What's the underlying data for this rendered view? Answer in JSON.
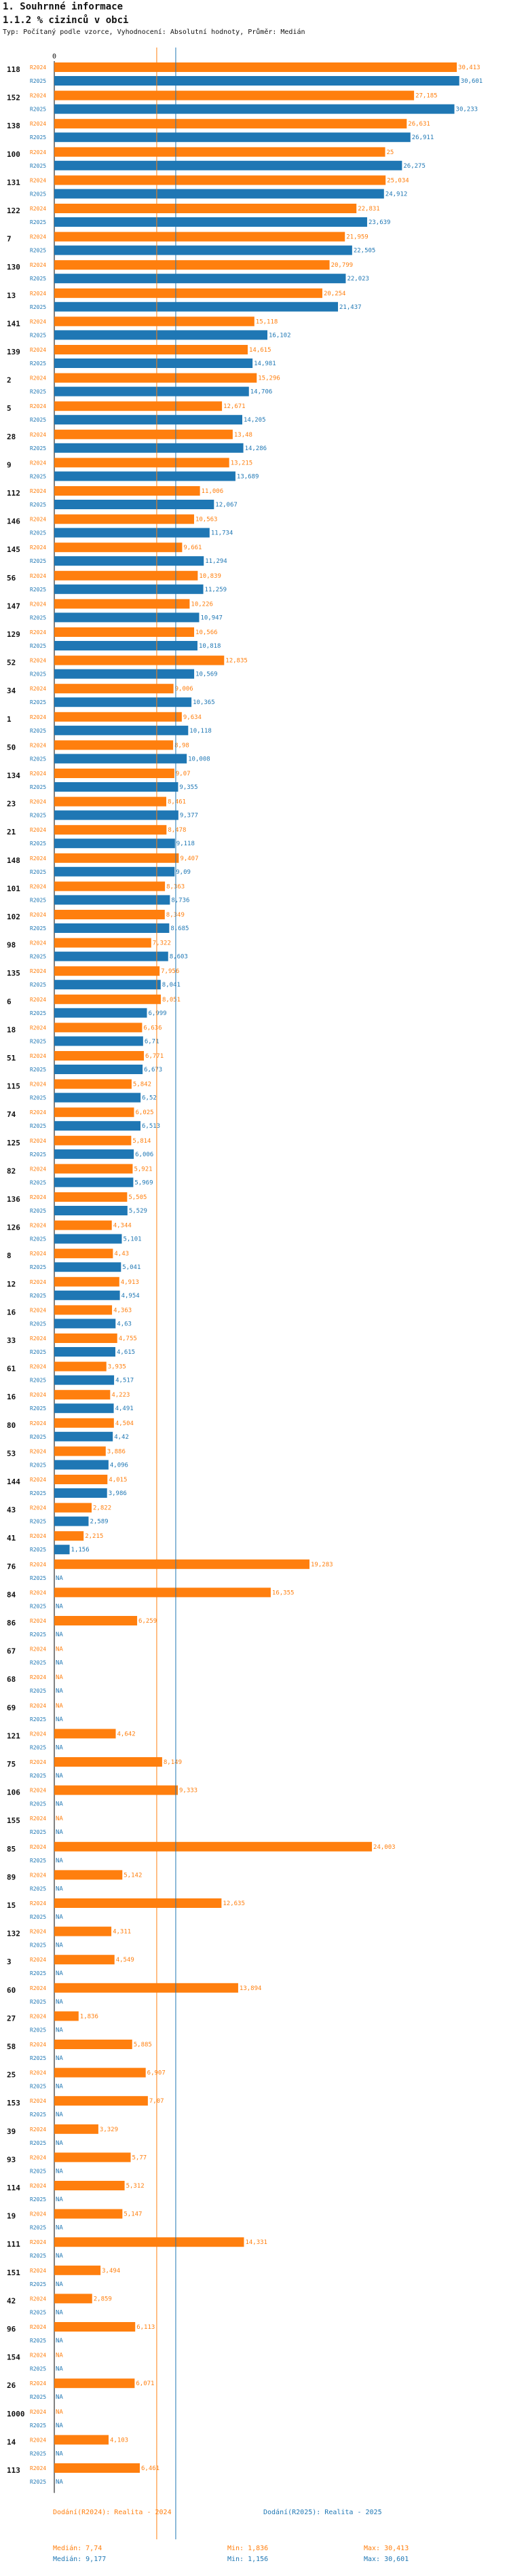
{
  "header": {
    "section": "1. Souhrnné informace",
    "title": "1.1.2 % cizinců v obci",
    "subtitle": "Typ: Počítaný podle vzorce, Vyhodnocení: Absolutní hodnoty, Průměr: Medián"
  },
  "chart_data": {
    "type": "bar",
    "orientation": "horizontal",
    "axis_zero_label": "0",
    "xlim": [
      0,
      31.5
    ],
    "series_names": [
      "R2024",
      "R2025"
    ],
    "colors": {
      "R2024": "#ff7f0e",
      "R2025": "#1f77b4"
    },
    "median_lines": {
      "R2024": 7.74,
      "R2025": 9.177
    },
    "rows": [
      {
        "id": "118",
        "v2024": "30,413",
        "v2025": "30,601"
      },
      {
        "id": "152",
        "v2024": "27,185",
        "v2025": "30,233"
      },
      {
        "id": "138",
        "v2024": "26,631",
        "v2025": "26,911"
      },
      {
        "id": "100",
        "v2024": "25",
        "v2025": "26,275"
      },
      {
        "id": "131",
        "v2024": "25,034",
        "v2025": "24,912"
      },
      {
        "id": "122",
        "v2024": "22,831",
        "v2025": "23,639"
      },
      {
        "id": "7",
        "v2024": "21,959",
        "v2025": "22,505"
      },
      {
        "id": "130",
        "v2024": "20,799",
        "v2025": "22,023"
      },
      {
        "id": "13",
        "v2024": "20,254",
        "v2025": "21,437"
      },
      {
        "id": "141",
        "v2024": "15,118",
        "v2025": "16,102"
      },
      {
        "id": "139",
        "v2024": "14,615",
        "v2025": "14,981"
      },
      {
        "id": "2",
        "v2024": "15,296",
        "v2025": "14,706"
      },
      {
        "id": "5",
        "v2024": "12,671",
        "v2025": "14,205"
      },
      {
        "id": "28",
        "v2024": "13,48",
        "v2025": "14,286"
      },
      {
        "id": "9",
        "v2024": "13,215",
        "v2025": "13,689"
      },
      {
        "id": "112",
        "v2024": "11,006",
        "v2025": "12,067"
      },
      {
        "id": "146",
        "v2024": "10,563",
        "v2025": "11,734"
      },
      {
        "id": "145",
        "v2024": "9,661",
        "v2025": "11,294"
      },
      {
        "id": "56",
        "v2024": "10,839",
        "v2025": "11,259"
      },
      {
        "id": "147",
        "v2024": "10,226",
        "v2025": "10,947"
      },
      {
        "id": "129",
        "v2024": "10,566",
        "v2025": "10,818"
      },
      {
        "id": "52",
        "v2024": "12,835",
        "v2025": "10,569"
      },
      {
        "id": "34",
        "v2024": "9,006",
        "v2025": "10,365"
      },
      {
        "id": "1",
        "v2024": "9,634",
        "v2025": "10,118"
      },
      {
        "id": "50",
        "v2024": "8,98",
        "v2025": "10,008"
      },
      {
        "id": "134",
        "v2024": "9,07",
        "v2025": "9,355"
      },
      {
        "id": "23",
        "v2024": "8,461",
        "v2025": "9,377"
      },
      {
        "id": "21",
        "v2024": "8,478",
        "v2025": "9,118"
      },
      {
        "id": "148",
        "v2024": "9,407",
        "v2025": "9,09"
      },
      {
        "id": "101",
        "v2024": "8,363",
        "v2025": "8,736"
      },
      {
        "id": "102",
        "v2024": "8,349",
        "v2025": "8,685"
      },
      {
        "id": "98",
        "v2024": "7,322",
        "v2025": "8,603"
      },
      {
        "id": "135",
        "v2024": "7,956",
        "v2025": "8,041"
      },
      {
        "id": "6",
        "v2024": "8,051",
        "v2025": "6,999"
      },
      {
        "id": "18",
        "v2024": "6,636",
        "v2025": "6,71"
      },
      {
        "id": "51",
        "v2024": "6,771",
        "v2025": "6,673"
      },
      {
        "id": "115",
        "v2024": "5,842",
        "v2025": "6,52"
      },
      {
        "id": "74",
        "v2024": "6,025",
        "v2025": "6,513"
      },
      {
        "id": "125",
        "v2024": "5,814",
        "v2025": "6,006"
      },
      {
        "id": "82",
        "v2024": "5,921",
        "v2025": "5,969"
      },
      {
        "id": "136",
        "v2024": "5,505",
        "v2025": "5,529"
      },
      {
        "id": "126",
        "v2024": "4,344",
        "v2025": "5,101"
      },
      {
        "id": "8",
        "v2024": "4,43",
        "v2025": "5,041"
      },
      {
        "id": "12",
        "v2024": "4,913",
        "v2025": "4,954"
      },
      {
        "id": "16",
        "v2024": "4,363",
        "v2025": "4,63"
      },
      {
        "id": "33",
        "v2024": "4,755",
        "v2025": "4,615"
      },
      {
        "id": "61",
        "v2024": "3,935",
        "v2025": "4,517"
      },
      {
        "id": "16",
        "v2024": "4,223",
        "v2025": "4,491"
      },
      {
        "id": "80",
        "v2024": "4,504",
        "v2025": "4,42"
      },
      {
        "id": "53",
        "v2024": "3,886",
        "v2025": "4,096"
      },
      {
        "id": "144",
        "v2024": "4,015",
        "v2025": "3,986"
      },
      {
        "id": "43",
        "v2024": "2,822",
        "v2025": "2,589"
      },
      {
        "id": "41",
        "v2024": "2,215",
        "v2025": "1,156"
      },
      {
        "id": "76",
        "v2024": "19,283",
        "v2025": "NA"
      },
      {
        "id": "84",
        "v2024": "16,355",
        "v2025": "NA"
      },
      {
        "id": "86",
        "v2024": "6,259",
        "v2025": "NA"
      },
      {
        "id": "67",
        "v2024": "NA",
        "v2025": "NA"
      },
      {
        "id": "68",
        "v2024": "NA",
        "v2025": "NA"
      },
      {
        "id": "69",
        "v2024": "NA",
        "v2025": "NA"
      },
      {
        "id": "121",
        "v2024": "4,642",
        "v2025": "NA"
      },
      {
        "id": "75",
        "v2024": "8,149",
        "v2025": "NA"
      },
      {
        "id": "106",
        "v2024": "9,333",
        "v2025": "NA"
      },
      {
        "id": "155",
        "v2024": "NA",
        "v2025": "NA"
      },
      {
        "id": "85",
        "v2024": "24,003",
        "v2025": "NA"
      },
      {
        "id": "89",
        "v2024": "5,142",
        "v2025": "NA"
      },
      {
        "id": "15",
        "v2024": "12,635",
        "v2025": "NA"
      },
      {
        "id": "132",
        "v2024": "4,311",
        "v2025": "NA"
      },
      {
        "id": "3",
        "v2024": "4,549",
        "v2025": "NA"
      },
      {
        "id": "60",
        "v2024": "13,894",
        "v2025": "NA"
      },
      {
        "id": "27",
        "v2024": "1,836",
        "v2025": "NA"
      },
      {
        "id": "58",
        "v2024": "5,885",
        "v2025": "NA"
      },
      {
        "id": "25",
        "v2024": "6,907",
        "v2025": "NA"
      },
      {
        "id": "153",
        "v2024": "7,07",
        "v2025": "NA"
      },
      {
        "id": "39",
        "v2024": "3,329",
        "v2025": "NA"
      },
      {
        "id": "93",
        "v2024": "5,77",
        "v2025": "NA"
      },
      {
        "id": "114",
        "v2024": "5,312",
        "v2025": "NA"
      },
      {
        "id": "19",
        "v2024": "5,147",
        "v2025": "NA"
      },
      {
        "id": "111",
        "v2024": "14,331",
        "v2025": "NA"
      },
      {
        "id": "151",
        "v2024": "3,494",
        "v2025": "NA"
      },
      {
        "id": "42",
        "v2024": "2,859",
        "v2025": "NA"
      },
      {
        "id": "96",
        "v2024": "6,113",
        "v2025": "NA"
      },
      {
        "id": "154",
        "v2024": "NA",
        "v2025": "NA"
      },
      {
        "id": "26",
        "v2024": "6,071",
        "v2025": "NA"
      },
      {
        "id": "1000",
        "v2024": "NA",
        "v2025": "NA"
      },
      {
        "id": "14",
        "v2024": "4,103",
        "v2025": "NA"
      },
      {
        "id": "113",
        "v2024": "6,461",
        "v2025": "NA"
      }
    ]
  },
  "legend": {
    "r2024": {
      "name": "Dodání(R2024): Realita - 2024",
      "median": "Medián: 7,74",
      "min": "Min: 1,836",
      "max": "Max: 30,413"
    },
    "r2025": {
      "name": "Dodání(R2025): Realita - 2025",
      "median": "Medián: 9,177",
      "min": "Min: 1,156",
      "max": "Max: 30,601"
    }
  }
}
